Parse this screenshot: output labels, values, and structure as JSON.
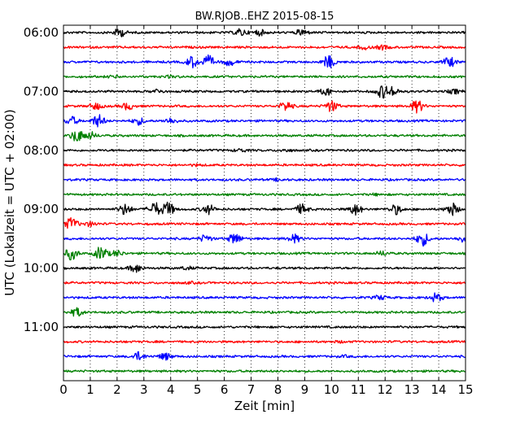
{
  "chart_data": {
    "type": "line",
    "title": "BW.RJOB..EHZ 2015-08-15",
    "xlabel": "Zeit  [min]",
    "ylabel": "UTC (Lokalzeit = UTC + 02:00)",
    "xlim": [
      0,
      15
    ],
    "x_ticks": [
      "0",
      "1",
      "2",
      "3",
      "4",
      "5",
      "6",
      "7",
      "8",
      "9",
      "10",
      "11",
      "12",
      "13",
      "14",
      "15"
    ],
    "y_ticks": [
      "06:00",
      "07:00",
      "08:00",
      "09:00",
      "10:00",
      "11:00"
    ],
    "row_interval_min": 15,
    "start_time": "06:00",
    "end_time": "11:45",
    "colors": [
      "#000000",
      "#ff0000",
      "#0000ff",
      "#008000"
    ],
    "grid": "vertical dotted lines at each minute",
    "rows": [
      {
        "time": "06:00",
        "color": "#000000",
        "bursts": [
          [
            2.1,
            0.6
          ],
          [
            6.6,
            0.5
          ],
          [
            7.3,
            0.4
          ],
          [
            8.9,
            0.45
          ]
        ]
      },
      {
        "time": "06:15",
        "color": "#ff0000",
        "bursts": [
          [
            11.2,
            0.25
          ],
          [
            11.9,
            0.3
          ]
        ]
      },
      {
        "time": "06:30",
        "color": "#0000ff",
        "bursts": [
          [
            4.8,
            0.8
          ],
          [
            5.4,
            0.9
          ],
          [
            6.2,
            0.5
          ],
          [
            9.9,
            0.9
          ],
          [
            14.4,
            0.7
          ]
        ]
      },
      {
        "time": "06:45",
        "color": "#008000",
        "bursts": [
          [
            1.9,
            0.15
          ],
          [
            4.0,
            0.12
          ]
        ]
      },
      {
        "time": "07:00",
        "color": "#000000",
        "bursts": [
          [
            3.5,
            0.25
          ],
          [
            9.8,
            0.5
          ],
          [
            11.9,
            0.9
          ],
          [
            12.3,
            0.6
          ],
          [
            14.6,
            0.3
          ]
        ]
      },
      {
        "time": "07:15",
        "color": "#ff0000",
        "bursts": [
          [
            1.2,
            0.5
          ],
          [
            2.4,
            0.5
          ],
          [
            8.3,
            0.7
          ],
          [
            10.0,
            0.8
          ],
          [
            13.2,
            0.9
          ]
        ]
      },
      {
        "time": "07:30",
        "color": "#0000ff",
        "bursts": [
          [
            0.3,
            0.6
          ],
          [
            1.3,
            0.9
          ],
          [
            2.8,
            0.5
          ],
          [
            4.0,
            0.4
          ]
        ]
      },
      {
        "time": "07:45",
        "color": "#008000",
        "bursts": [
          [
            0.5,
            0.9
          ],
          [
            1.0,
            0.5
          ]
        ]
      },
      {
        "time": "08:00",
        "color": "#000000",
        "bursts": [
          [
            6.6,
            0.2
          ],
          [
            8.3,
            0.15
          ]
        ]
      },
      {
        "time": "08:15",
        "color": "#ff0000",
        "bursts": [
          [
            5.0,
            0.1
          ]
        ]
      },
      {
        "time": "08:30",
        "color": "#0000ff",
        "bursts": [
          [
            8.0,
            0.15
          ]
        ]
      },
      {
        "time": "08:45",
        "color": "#008000",
        "bursts": [
          [
            11.7,
            0.1
          ]
        ]
      },
      {
        "time": "09:00",
        "color": "#000000",
        "bursts": [
          [
            2.3,
            0.8
          ],
          [
            3.4,
            1.0
          ],
          [
            3.9,
            1.0
          ],
          [
            5.4,
            0.7
          ],
          [
            8.9,
            0.7
          ],
          [
            10.9,
            0.8
          ],
          [
            12.4,
            0.7
          ],
          [
            14.5,
            0.9
          ]
        ]
      },
      {
        "time": "09:15",
        "color": "#ff0000",
        "bursts": [
          [
            0.3,
            0.9
          ],
          [
            1.0,
            0.3
          ]
        ]
      },
      {
        "time": "09:30",
        "color": "#0000ff",
        "bursts": [
          [
            5.3,
            0.5
          ],
          [
            6.4,
            0.8
          ],
          [
            8.6,
            0.6
          ],
          [
            13.4,
            1.0
          ],
          [
            14.9,
            0.4
          ]
        ]
      },
      {
        "time": "09:45",
        "color": "#008000",
        "bursts": [
          [
            0.3,
            0.9
          ],
          [
            1.4,
            1.0
          ],
          [
            2.0,
            0.4
          ],
          [
            11.9,
            0.3
          ]
        ]
      },
      {
        "time": "10:00",
        "color": "#000000",
        "bursts": [
          [
            2.7,
            0.6
          ],
          [
            4.6,
            0.2
          ]
        ]
      },
      {
        "time": "10:15",
        "color": "#ff0000",
        "bursts": [
          [
            4.7,
            0.1
          ]
        ]
      },
      {
        "time": "10:30",
        "color": "#0000ff",
        "bursts": [
          [
            11.8,
            0.3
          ],
          [
            13.9,
            0.6
          ]
        ]
      },
      {
        "time": "10:45",
        "color": "#008000",
        "bursts": [
          [
            0.5,
            0.6
          ]
        ]
      },
      {
        "time": "11:00",
        "color": "#000000",
        "bursts": []
      },
      {
        "time": "11:15",
        "color": "#ff0000",
        "bursts": [
          [
            10.3,
            0.1
          ]
        ]
      },
      {
        "time": "11:30",
        "color": "#0000ff",
        "bursts": [
          [
            2.8,
            0.6
          ],
          [
            3.8,
            0.5
          ],
          [
            10.5,
            0.1
          ]
        ]
      },
      {
        "time": "11:45",
        "color": "#008000",
        "bursts": []
      }
    ]
  }
}
